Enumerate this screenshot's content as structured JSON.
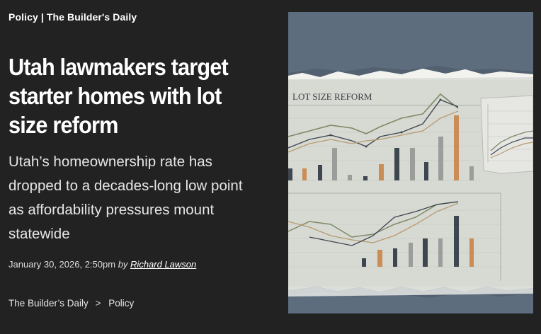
{
  "kicker": {
    "section": "Policy",
    "separator": "|",
    "publication": "The Builder's Daily"
  },
  "headline": "Utah lawmakers target starter homes with lot size reform",
  "dek": "Utah’s homeownership rate has dropped to a decades-long low point as affordability pressures mount statewide",
  "meta": {
    "date": "January 30, 2026, 2:50pm",
    "by": "by",
    "author": "Richard Lawson"
  },
  "breadcrumb": {
    "home": "The Builder’s Daily",
    "separator": ">",
    "section": "Policy"
  },
  "image": {
    "paper_title": "LOT SIZE REFORM",
    "colors": {
      "background": "#222222",
      "photo_backdrop": "#5d6d7d",
      "paper": "#d9dbd5",
      "bar_dark": "#3e4650",
      "bar_orange": "#c98d55",
      "line_green": "#7d8a66"
    }
  }
}
